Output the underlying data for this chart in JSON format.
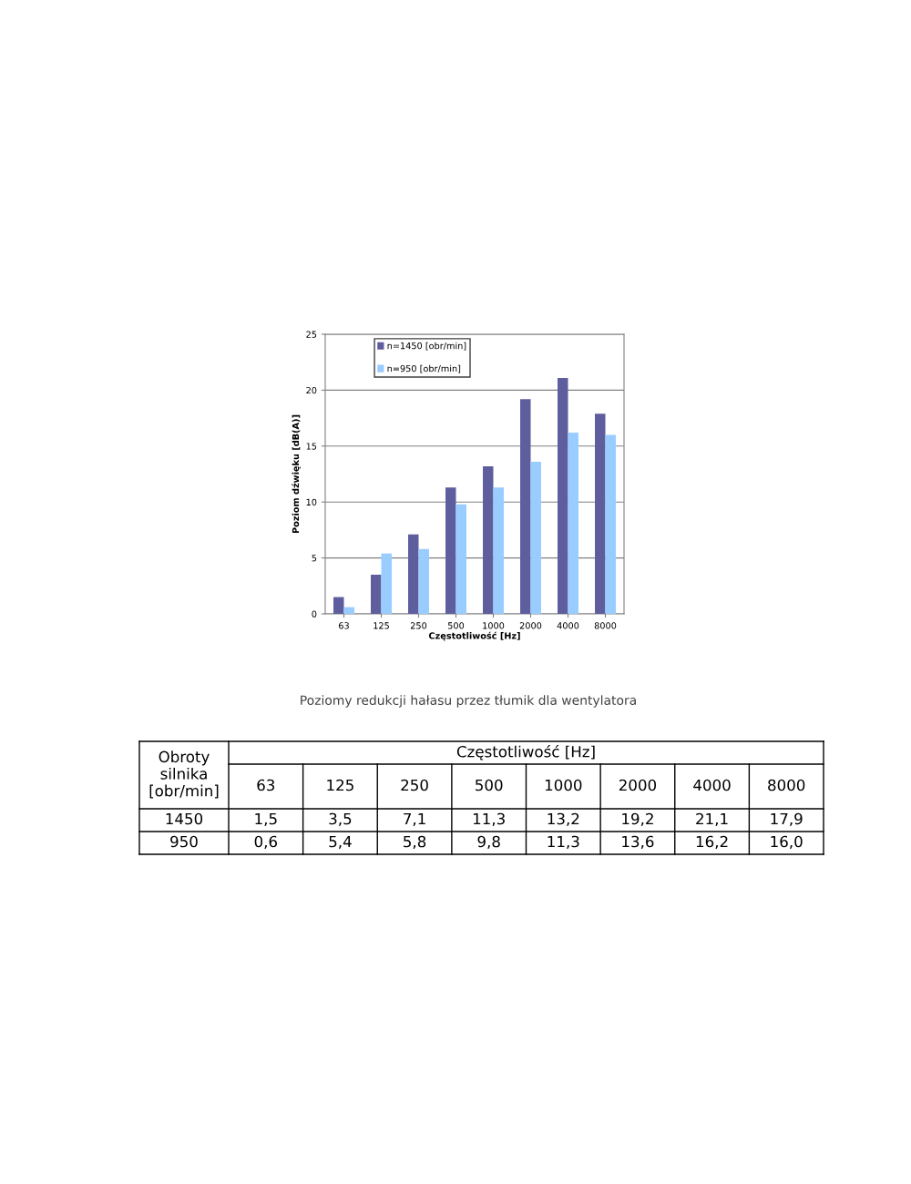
{
  "chart_data": {
    "type": "bar",
    "xlabel": "Częstotliwość [Hz]",
    "ylabel": "Poziom dźwięku [dB(A)]",
    "categories": [
      "63",
      "125",
      "250",
      "500",
      "1000",
      "2000",
      "4000",
      "8000"
    ],
    "series": [
      {
        "name": "n=1450 [obr/min]",
        "color": "#5e5e9e",
        "values": [
          1.5,
          3.5,
          7.1,
          11.3,
          13.2,
          19.2,
          21.1,
          17.9
        ]
      },
      {
        "name": "n=950 [obr/min]",
        "color": "#99ccff",
        "values": [
          0.6,
          5.4,
          5.8,
          9.8,
          11.3,
          13.6,
          16.2,
          16.0
        ]
      }
    ],
    "ylim": [
      0,
      25
    ],
    "yticks": [
      0,
      5,
      10,
      15,
      20,
      25
    ],
    "grid": "y",
    "legend": "top left",
    "annotations": [
      "Poziomy redukcji hałasu przez tłumik dla wentylatora",
      "Obroty silnika [obr/min]",
      "Częstotliwość [Hz]",
      "1450",
      "950",
      "1,5",
      "3,5",
      "7,1",
      "11,3",
      "13,2",
      "19,2",
      "21,1",
      "17,9",
      "0,6",
      "5,4",
      "5,8",
      "9,8",
      "11,3",
      "13,6",
      "16,2",
      "16,0"
    ]
  }
}
